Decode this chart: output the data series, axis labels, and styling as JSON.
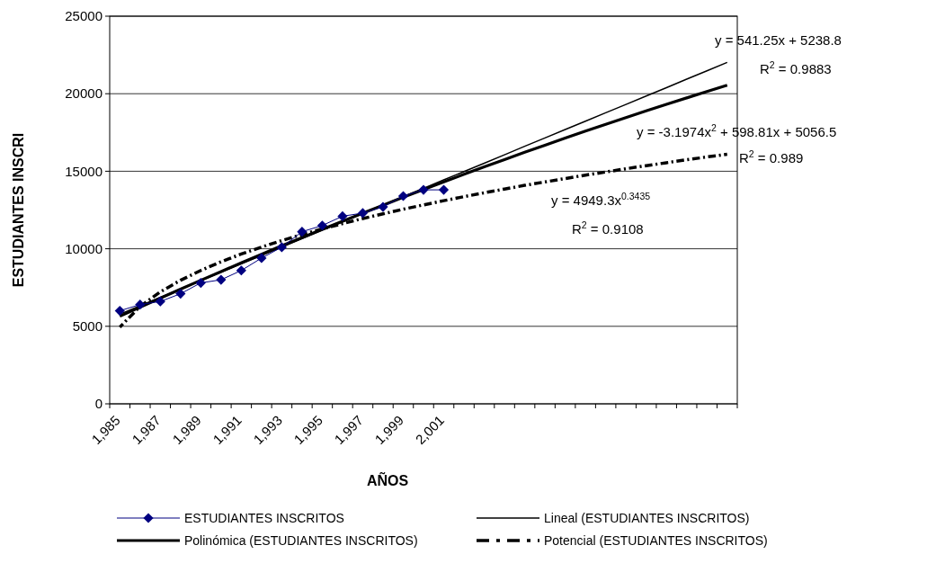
{
  "chart_data": {
    "type": "line",
    "xlabel": "AÑOS",
    "ylabel": "ESTUDIANTES INSCRI",
    "categories": [
      "1,985",
      null,
      "1,987",
      null,
      "1,989",
      null,
      "1,991",
      null,
      "1,993",
      null,
      "1,995",
      null,
      "1,997",
      null,
      "1,999",
      null,
      "2,001",
      null,
      null,
      null,
      null,
      null,
      null,
      null,
      null,
      null,
      null,
      null,
      null,
      null,
      null
    ],
    "ylim": [
      0,
      25000
    ],
    "yticks": [
      0,
      5000,
      10000,
      15000,
      20000,
      25000
    ],
    "grid": "y",
    "legend": "bottom",
    "series": [
      {
        "name": "ESTUDIANTES INSCRITOS",
        "color": "#000080",
        "marker": "diamond",
        "line_style": "solid",
        "values": [
          6000,
          6400,
          6600,
          7100,
          7800,
          8000,
          8600,
          9400,
          10100,
          11100,
          11500,
          12100,
          12300,
          12700,
          13400,
          13800,
          13800,
          null,
          null,
          null,
          null,
          null,
          null,
          null,
          null,
          null,
          null,
          null,
          null,
          null,
          null
        ]
      },
      {
        "name": "Lineal (ESTUDIANTES INSCRITOS)",
        "color": "#000000",
        "marker": "none",
        "line_style": "solid",
        "values": [
          5780,
          6320,
          6860,
          7400,
          7950,
          8490,
          9030,
          9570,
          10110,
          10650,
          11190,
          11730,
          12280,
          12820,
          13360,
          13900,
          14440,
          14980,
          15520,
          16060,
          16610,
          17150,
          17690,
          18230,
          18770,
          19310,
          19850,
          20390,
          20940,
          21480,
          22020
        ]
      },
      {
        "name": "Polinómica (ESTUDIANTES INSCRITOS)",
        "color": "#000000",
        "marker": "none",
        "line_style": "solid",
        "values": [
          5650,
          6240,
          6820,
          7400,
          7970,
          8530,
          9090,
          9640,
          10190,
          10720,
          11260,
          11780,
          12300,
          12810,
          13320,
          13820,
          14310,
          14800,
          15280,
          15750,
          16220,
          16680,
          17140,
          17590,
          18030,
          18460,
          18890,
          19320,
          19730,
          20140,
          20550
        ]
      },
      {
        "name": "Potencial (ESTUDIANTES INSCRITOS)",
        "color": "#000000",
        "marker": "none",
        "line_style": "dashed",
        "values": [
          4950,
          6280,
          7220,
          7970,
          8600,
          9160,
          9660,
          10110,
          10530,
          10920,
          11280,
          11620,
          11950,
          12250,
          12550,
          12830,
          13100,
          13360,
          13610,
          13850,
          14090,
          14310,
          14530,
          14750,
          14950,
          15160,
          15360,
          15550,
          15740,
          15920,
          16100
        ]
      }
    ],
    "annotations": [
      "y =  541.25x +  5238.8",
      "R$^{2}$ =  0.9883",
      "y =  -3.1974x$^{2}$ +  598.81x +  5056.5",
      "R$^{2}$ =  0.989",
      "y = 4949.3x$^{0.3435}$",
      "R$^{2}$ = 0.9108"
    ]
  }
}
